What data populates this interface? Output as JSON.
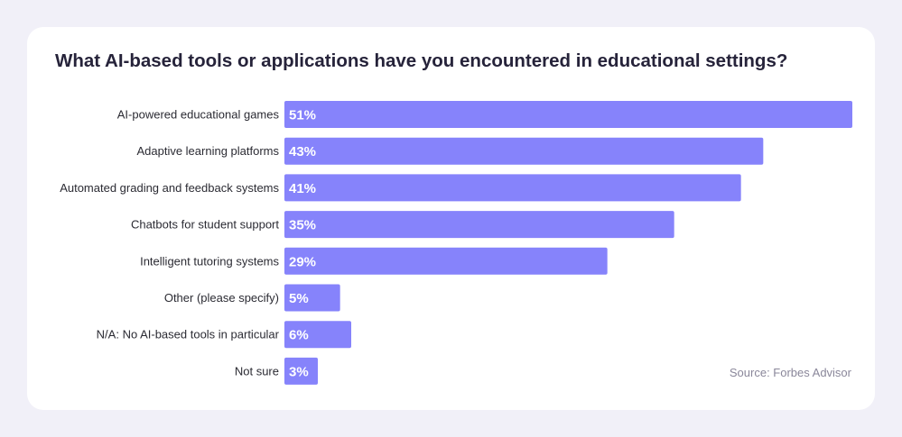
{
  "chart_data": {
    "type": "bar",
    "orientation": "horizontal",
    "title": "What AI-based tools or applications have you encountered in educational settings?",
    "categories": [
      "AI-powered educational games",
      "Adaptive learning platforms",
      "Automated grading and feedback systems",
      "Chatbots for student support",
      "Intelligent tutoring systems",
      "Other (please specify)",
      "N/A: No AI-based tools in particular",
      "Not sure"
    ],
    "values": [
      51,
      43,
      41,
      35,
      29,
      5,
      6,
      3
    ],
    "value_labels": [
      "51%",
      "43%",
      "41%",
      "35%",
      "29%",
      "5%",
      "6%",
      "3%"
    ],
    "unit": "%",
    "xlim": [
      0,
      51
    ],
    "grid": false,
    "legend": false,
    "bar_color": "#8683fb",
    "source": "Source: Forbes Advisor"
  }
}
